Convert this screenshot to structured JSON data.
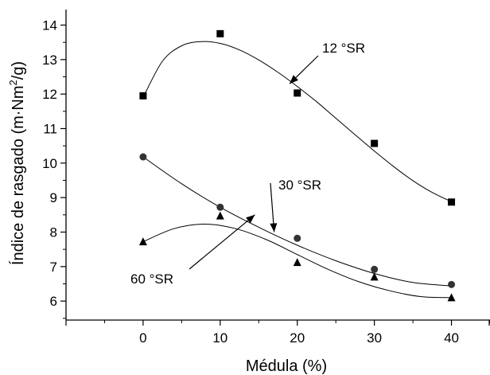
{
  "chart_data": {
    "type": "scatter",
    "title": "",
    "xlabel": "Médula (%)",
    "ylabel_main": "Índice de rasgado (m·Nm",
    "ylabel_sup": "2",
    "ylabel_tail": "/g)",
    "xlim": [
      -10,
      45
    ],
    "ylim": [
      5.45,
      14.45
    ],
    "x_ticks": [
      0,
      10,
      20,
      30,
      40
    ],
    "x_tick_labels": [
      "0",
      "10",
      "20",
      "30",
      "40"
    ],
    "y_ticks": [
      6,
      7,
      8,
      9,
      10,
      11,
      12,
      13,
      14
    ],
    "y_tick_labels": [
      "6",
      "7",
      "8",
      "9",
      "10",
      "11",
      "12",
      "13",
      "14"
    ],
    "grid": false,
    "series": [
      {
        "name": "12 °SR",
        "marker": "square",
        "x": [
          0,
          10,
          20,
          30,
          40
        ],
        "values": [
          11.95,
          13.75,
          12.03,
          10.57,
          8.87
        ],
        "fit": [
          [
            0,
            11.9
          ],
          [
            2.5,
            12.95
          ],
          [
            5,
            13.4
          ],
          [
            7.5,
            13.52
          ],
          [
            10,
            13.47
          ],
          [
            12.5,
            13.28
          ],
          [
            15,
            12.99
          ],
          [
            17.5,
            12.63
          ],
          [
            20,
            12.22
          ],
          [
            22.5,
            11.78
          ],
          [
            25,
            11.3
          ],
          [
            27.5,
            10.82
          ],
          [
            30,
            10.35
          ],
          [
            32.5,
            9.9
          ],
          [
            35,
            9.49
          ],
          [
            37.5,
            9.15
          ],
          [
            40,
            8.88
          ]
        ]
      },
      {
        "name": "30 °SR",
        "marker": "circle",
        "x": [
          0,
          10,
          20,
          30,
          40
        ],
        "values": [
          10.18,
          8.72,
          7.82,
          6.92,
          6.48
        ],
        "fit": [
          [
            0,
            10.18
          ],
          [
            5,
            9.4
          ],
          [
            10,
            8.72
          ],
          [
            15,
            8.14
          ],
          [
            20,
            7.62
          ],
          [
            25,
            7.17
          ],
          [
            30,
            6.8
          ],
          [
            35,
            6.54
          ],
          [
            40,
            6.44
          ]
        ]
      },
      {
        "name": "60 °SR",
        "marker": "triangle",
        "x": [
          0,
          10,
          20,
          30,
          40
        ],
        "values": [
          7.72,
          8.47,
          7.12,
          6.7,
          6.1
        ],
        "fit": [
          [
            0,
            7.72
          ],
          [
            4,
            8.1
          ],
          [
            8,
            8.23
          ],
          [
            12,
            8.1
          ],
          [
            16,
            7.78
          ],
          [
            20,
            7.35
          ],
          [
            24,
            6.92
          ],
          [
            28,
            6.56
          ],
          [
            32,
            6.3
          ],
          [
            36,
            6.13
          ],
          [
            40,
            6.1
          ]
        ]
      }
    ],
    "annotations": [
      {
        "text": "12 °SR",
        "points_to": [
          19,
          12.3
        ]
      },
      {
        "text": "30 °SR",
        "points_to": [
          17,
          8.0
        ]
      },
      {
        "text": "60 °SR",
        "points_to": [
          14.5,
          8.5
        ]
      }
    ],
    "colors": {
      "marks": "#000000",
      "background": "#ffffff"
    }
  }
}
